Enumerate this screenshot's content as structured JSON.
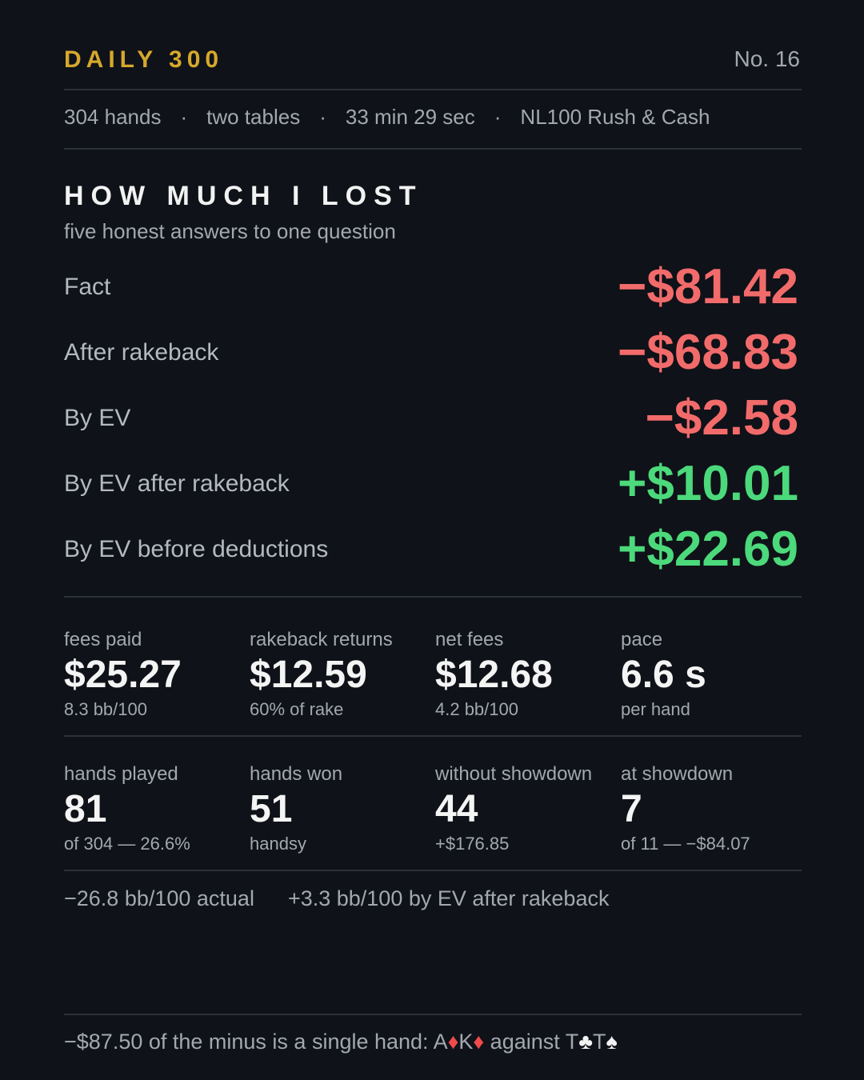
{
  "header": {
    "title": "DAILY 300",
    "number": "No. 16"
  },
  "meta": {
    "items": [
      "304 hands",
      "two tables",
      "33 min 29 sec",
      "NL100 Rush & Cash"
    ],
    "separator": "·"
  },
  "section": {
    "title": "HOW MUCH I LOST",
    "subtitle": "five honest answers to one question"
  },
  "answers": [
    {
      "label": "Fact",
      "value": "−$81.42",
      "color": "#f26b6b"
    },
    {
      "label": "After rakeback",
      "value": "−$68.83",
      "color": "#f26b6b"
    },
    {
      "label": "By EV",
      "value": "−$2.58",
      "color": "#f26b6b"
    },
    {
      "label": "By EV after rakeback",
      "value": "+$10.01",
      "color": "#4cd97b"
    },
    {
      "label": "By EV before deductions",
      "value": "+$22.69",
      "color": "#4cd97b"
    }
  ],
  "stats": [
    [
      {
        "label": "fees paid",
        "value": "$25.27",
        "note": "8.3 bb/100"
      },
      {
        "label": "rakeback returns",
        "value": "$12.59",
        "note": "60% of rake"
      },
      {
        "label": "net fees",
        "value": "$12.68",
        "note": "4.2 bb/100"
      },
      {
        "label": "pace",
        "value": "6.6 s",
        "note": "per hand"
      }
    ],
    [
      {
        "label": "hands played",
        "value": "81",
        "note": "of 304 — 26.6%"
      },
      {
        "label": "hands won",
        "value": "51",
        "note": "handsy"
      },
      {
        "label": "without showdown",
        "value": "44",
        "note": "+$176.85"
      },
      {
        "label": "at showdown",
        "value": "7",
        "note": "of 11 — −$84.07"
      }
    ]
  ],
  "summary": [
    "−26.8 bb/100 actual",
    "+3.3 bb/100 by EV after rakeback"
  ],
  "note": {
    "parts": [
      "−$87.50 of the minus is a single hand: A",
      "♦",
      "K",
      "♦",
      " against T",
      "♣",
      "T",
      "♠"
    ]
  }
}
